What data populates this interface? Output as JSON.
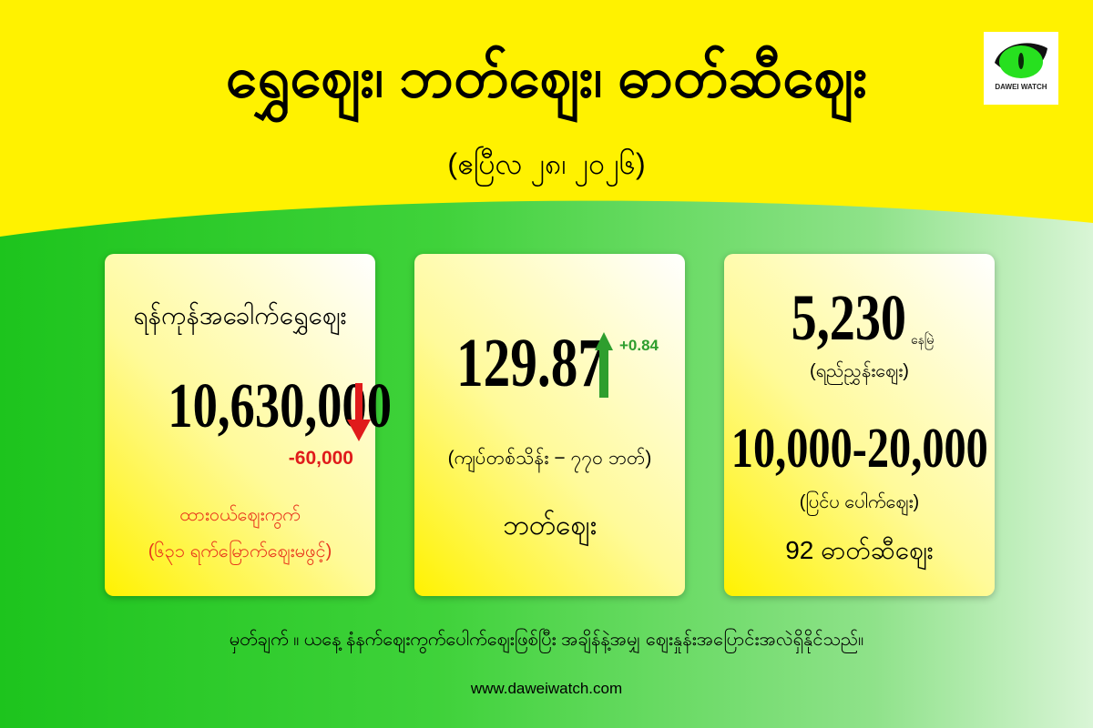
{
  "header": {
    "title": "ရွှေဈေး၊ ဘတ်ဈေး၊ ဓာတ်ဆီဈေး",
    "date": "(ဧပြီလ ၂၈၊ ၂၀၂၆)",
    "logo_text": "DAWEI WATCH"
  },
  "colors": {
    "header_bg": "#fff200",
    "down": "#e01b1b",
    "up": "#2e9e2e",
    "background": "#1dc41d"
  },
  "gold": {
    "label": "ရန်ကုန်အခေါက်ရွှေဈေး",
    "value": "10,630,000",
    "change": "-60,000",
    "trend_icon": "arrow-down-icon",
    "local_market": "ထားဝယ်ဈေးကွက်",
    "local_note": "(၆၃၁ ရက်မြောက်ဈေးမဖွင့်)"
  },
  "baht": {
    "value": "129.87",
    "change": "+0.84",
    "trend_icon": "arrow-up-icon",
    "note": "(ကျပ်တစ်သိန်း − ၇၇၀ ဘတ်)",
    "label": "ဘတ်ဈေး"
  },
  "fuel": {
    "reference_value": "5,230",
    "reference_status": "နေမြဲ",
    "reference_label": "(ရည်ညွှန်းဈေး)",
    "outside_value": "10,000-20,000",
    "outside_label": "(ပြင်ပ ပေါက်ဈေး)",
    "label": "92 ဓာတ်ဆီဈေး"
  },
  "footer": {
    "note": "မှတ်ချက် ။ ယနေ့ နံနက်ဈေးကွက်ပေါက်ဈေးဖြစ်ပြီး အချိန်နဲ့အမျှ ဈေးနှုန်းအပြောင်းအလဲရှိနိုင်သည်။",
    "url": "www.daweiwatch.com"
  }
}
